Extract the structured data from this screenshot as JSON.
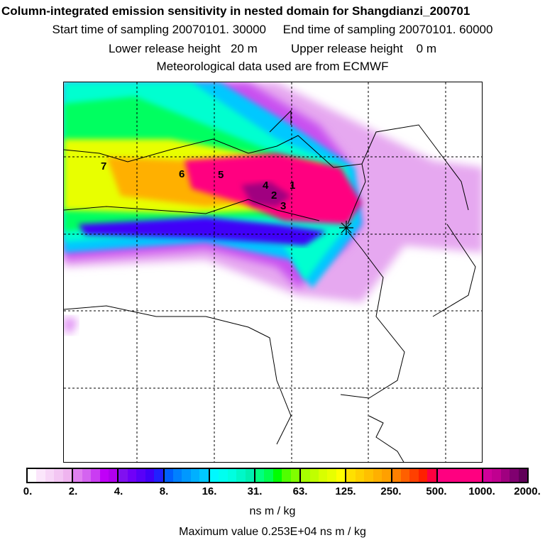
{
  "header": {
    "title": "Column-integrated emission sensitivity in nested domain for Shangdianzi_200701",
    "line2": "Start time of sampling 20070101. 30000     End time of sampling 20070101. 60000",
    "line3": "Lower release height   20 m          Upper release height    0 m",
    "line4": "Meteorological data used are from ECMWF"
  },
  "map": {
    "station": "Shangdianzi",
    "labels": [
      "1",
      "2",
      "3",
      "4",
      "5",
      "6",
      "7"
    ]
  },
  "colorbar": {
    "ticks": [
      "0.",
      "2.",
      "4.",
      "8.",
      "16.",
      "31.",
      "63.",
      "125.",
      "250.",
      "500.",
      "1000.",
      "2000."
    ],
    "colors": [
      [
        "#ffffff",
        "#fbe6fb",
        "#f7d6f7",
        "#f3c6f3",
        "#efb4ef"
      ],
      [
        "#e080f0",
        "#d464f0",
        "#ca3cf2",
        "#c000f8",
        "#b000ee"
      ],
      [
        "#8010f0",
        "#7000f8",
        "#5800f8",
        "#4000f8",
        "#2020ff"
      ],
      [
        "#0060ff",
        "#0080ff",
        "#0098ff",
        "#00b0ff",
        "#00c8ff"
      ],
      [
        "#00f8ff",
        "#00fff0",
        "#00ffe0",
        "#00f8c8",
        "#00f0b0"
      ],
      [
        "#00ff80",
        "#00ff50",
        "#00ff00",
        "#50ff00",
        "#80ff00"
      ],
      [
        "#a8ff00",
        "#c0ff00",
        "#d8ff00",
        "#e8ff00",
        "#ffff00"
      ],
      [
        "#ffe000",
        "#ffd000",
        "#ffc000",
        "#ffb000",
        "#ffa000"
      ],
      [
        "#ff8000",
        "#ff6000",
        "#ff4000",
        "#ff2000",
        "#ff0040"
      ],
      [
        "#ff0080",
        "#ff0080",
        "#ff0080",
        "#ff0080",
        "#ff0080"
      ],
      [
        "#d0009a",
        "#c00090",
        "#a00080",
        "#800070",
        "#600058"
      ]
    ],
    "unit": "ns m / kg"
  },
  "max_value": "Maximum value  0.253E+04 ns m / kg"
}
